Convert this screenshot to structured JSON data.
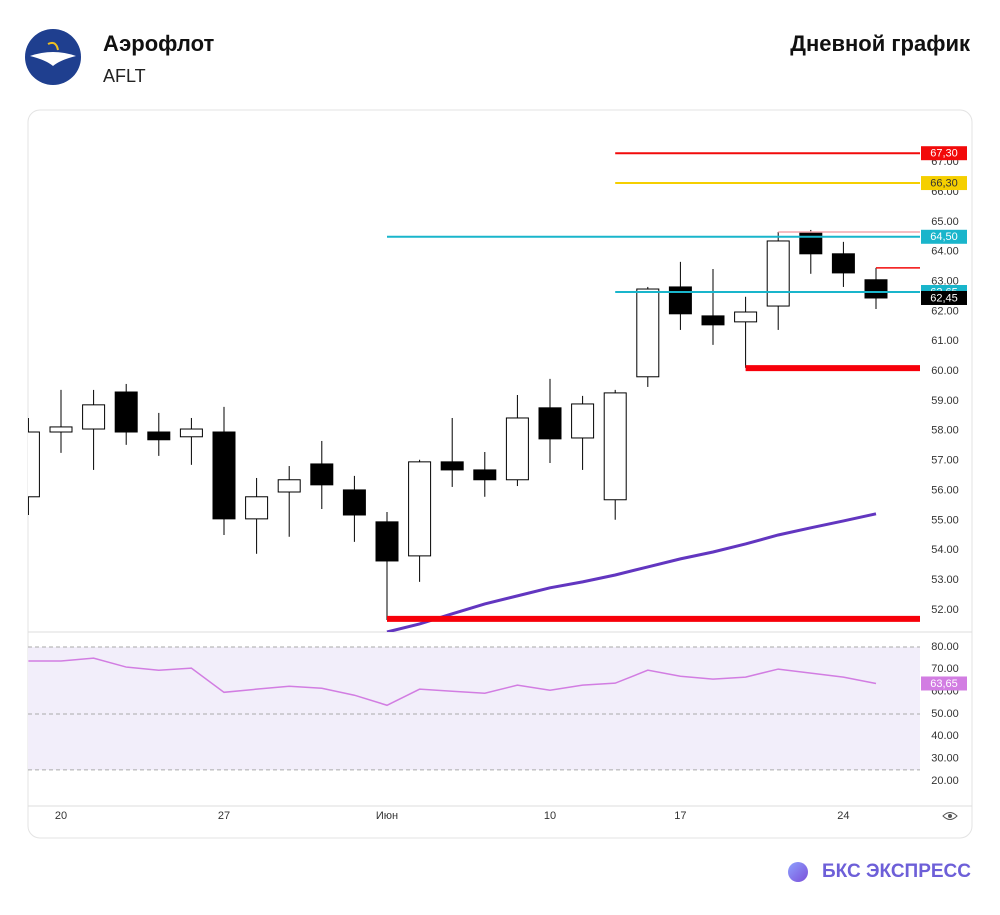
{
  "header": {
    "title": "Аэрофлот",
    "ticker": "AFLT",
    "subtitle": "Дневной график"
  },
  "footer": {
    "brand": "БКС ЭКСПРЕСС"
  },
  "chart_data": [
    {
      "type": "candlestick",
      "categories": [
        null,
        "20",
        null,
        null,
        null,
        null,
        "27",
        null,
        null,
        null,
        null,
        "Июн",
        null,
        null,
        null,
        null,
        "10",
        null,
        null,
        null,
        "17",
        null,
        null,
        null,
        null,
        "24",
        null
      ],
      "open": [
        55.79,
        57.96,
        58.06,
        59.3,
        57.96,
        57.8,
        57.96,
        55.05,
        55.95,
        56.89,
        56.02,
        54.95,
        53.81,
        56.96,
        56.69,
        56.36,
        58.77,
        57.76,
        55.69,
        59.81,
        62.82,
        61.85,
        61.65,
        62.18,
        64.66,
        63.93,
        63.06
      ],
      "high": [
        58.43,
        59.37,
        59.37,
        59.57,
        58.6,
        58.43,
        58.8,
        56.42,
        56.82,
        57.66,
        56.49,
        55.28,
        57.03,
        58.43,
        57.29,
        59.2,
        59.74,
        59.17,
        59.37,
        62.82,
        63.66,
        63.42,
        62.49,
        64.66,
        64.73,
        64.33,
        63.46
      ],
      "low": [
        55.18,
        57.26,
        56.69,
        57.53,
        57.16,
        56.86,
        54.51,
        53.88,
        54.45,
        55.38,
        54.28,
        51.66,
        52.94,
        56.12,
        55.79,
        56.15,
        56.92,
        56.69,
        55.02,
        59.47,
        61.38,
        60.88,
        60.11,
        61.38,
        63.26,
        62.82,
        62.08
      ],
      "close": [
        57.96,
        58.13,
        58.87,
        57.96,
        57.7,
        58.06,
        55.05,
        55.79,
        56.36,
        56.19,
        55.18,
        53.64,
        56.96,
        56.69,
        56.36,
        58.43,
        57.73,
        58.9,
        59.27,
        62.75,
        61.92,
        61.55,
        61.98,
        64.36,
        63.93,
        63.29,
        62.45
      ],
      "close_label": "62,45",
      "series": [
        {
          "color": "#6236c0",
          "values": [
            null,
            null,
            null,
            null,
            null,
            null,
            null,
            null,
            null,
            null,
            null,
            51.26,
            51.53,
            51.87,
            52.2,
            52.47,
            52.74,
            52.94,
            53.17,
            53.44,
            53.71,
            53.94,
            54.21,
            54.51,
            54.75,
            54.98,
            55.22
          ]
        }
      ],
      "levels": [
        {
          "value": 67.3,
          "label": "67,30",
          "color": "#f20a0a",
          "from": 18,
          "width": 2
        },
        {
          "value": 66.3,
          "label": "66,30",
          "color": "#f5cf00",
          "from": 18,
          "width": 2
        },
        {
          "value": 64.5,
          "label": "64,50",
          "color": "#19b5cb",
          "from": 11,
          "width": 2
        },
        {
          "value": 62.65,
          "label": "62,65",
          "color": "#19b5cb",
          "from": 18,
          "width": 2
        },
        {
          "value": 64.66,
          "color": "#f3a7ae",
          "from": 23,
          "width": 1.5
        },
        {
          "value": 63.46,
          "color": "#f20a0a",
          "from": 26,
          "width": 1.5
        },
        {
          "value": 60.1,
          "color": "#f7000a",
          "from": 22,
          "width": 6
        },
        {
          "value": 51.7,
          "color": "#f7000a",
          "from": 11,
          "width": 6
        }
      ],
      "ylim": [
        51.26,
        68.58
      ],
      "yticks": [
        {
          "value": 52,
          "label": "52.00"
        },
        {
          "value": 53,
          "label": "53.00"
        },
        {
          "value": 54,
          "label": "54.00"
        },
        {
          "value": 55,
          "label": "55.00"
        },
        {
          "value": 56,
          "label": "56.00"
        },
        {
          "value": 57,
          "label": "57.00"
        },
        {
          "value": 58,
          "label": "58.00"
        },
        {
          "value": 59,
          "label": "59.00"
        },
        {
          "value": 60,
          "label": "60.00"
        },
        {
          "value": 61,
          "label": "61.00"
        },
        {
          "value": 62,
          "label": "62.00"
        },
        {
          "value": 63,
          "label": "63.00"
        },
        {
          "value": 64,
          "label": "64.00"
        },
        {
          "value": 65,
          "label": "65.00"
        },
        {
          "value": 66,
          "label": "66.00"
        },
        {
          "value": 67,
          "label": "67.00"
        }
      ]
    },
    {
      "type": "line",
      "series": [
        {
          "color": "#d27de2",
          "values": [
            73.7,
            73.7,
            75.0,
            71.0,
            69.6,
            70.5,
            59.7,
            61.1,
            62.4,
            61.5,
            58.4,
            53.9,
            61.1,
            60.2,
            59.3,
            62.9,
            60.6,
            62.9,
            63.8,
            69.6,
            66.9,
            65.6,
            66.5,
            70.1,
            68.3,
            66.5,
            63.65
          ],
          "value_labels": [
            null,
            null,
            null,
            null,
            null,
            null,
            null,
            null,
            null,
            null,
            null,
            null,
            null,
            null,
            null,
            null,
            null,
            null,
            null,
            null,
            null,
            null,
            null,
            null,
            null,
            null,
            "63,65"
          ]
        }
      ],
      "bands": [
        80,
        50,
        25
      ],
      "ylim": [
        8.8,
        86.7
      ],
      "yticks": [
        {
          "value": 20,
          "label": "20.00"
        },
        {
          "value": 30,
          "label": "30.00"
        },
        {
          "value": 40,
          "label": "40.00"
        },
        {
          "value": 50,
          "label": "50.00"
        },
        {
          "value": 60,
          "label": "60.00"
        },
        {
          "value": 70,
          "label": "70.00"
        },
        {
          "value": 80,
          "label": "80.00"
        }
      ]
    }
  ]
}
